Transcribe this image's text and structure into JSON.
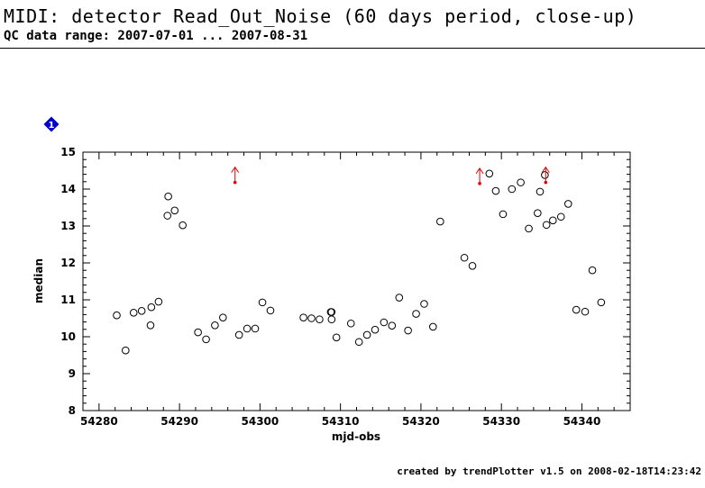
{
  "header": {
    "title": "MIDI: detector Read_Out_Noise (60 days period, close-up)",
    "subtitle": "QC data range: 2007-07-01 ... 2007-08-31"
  },
  "footer": {
    "credit": "created by trendPlotter v1.5 on 2008-02-18T14:23:42"
  },
  "badge": {
    "label": "1",
    "color": "#0000cc"
  },
  "colors": {
    "marker": "#000000",
    "outlier": "#dd0000"
  },
  "chart_data": {
    "type": "scatter",
    "xlabel": "mjd-obs",
    "ylabel": "median",
    "xlim": [
      54278,
      54346
    ],
    "ylim": [
      8,
      15
    ],
    "xticks": [
      54280,
      54290,
      54300,
      54310,
      54320,
      54330,
      54340
    ],
    "yticks": [
      8,
      9,
      10,
      11,
      12,
      13,
      14,
      15
    ],
    "grid": false,
    "series": [
      {
        "marker": "open-circle",
        "x": [
          54282.2,
          54283.3,
          54284.3,
          54285.3,
          54286.4,
          54286.5,
          54287.4,
          54288.5,
          54288.6,
          54289.4,
          54290.4,
          54292.3,
          54293.3,
          54294.4,
          54295.4,
          54297.4,
          54298.4,
          54299.4,
          54300.3,
          54301.3,
          54305.4,
          54306.4,
          54307.4,
          54308.8,
          54308.9,
          54308.9,
          54309.5,
          54311.3,
          54312.3,
          54313.3,
          54314.3,
          54315.4,
          54316.4,
          54317.3,
          54318.4,
          54319.4,
          54320.4,
          54321.5,
          54322.4,
          54325.4,
          54326.4,
          54328.5,
          54329.3,
          54330.2,
          54331.3,
          54332.4,
          54333.4,
          54334.5,
          54334.8,
          54335.4,
          54335.6,
          54336.4,
          54337.4,
          54338.3,
          54339.3,
          54340.4,
          54341.3,
          54342.4
        ],
        "y": [
          10.58,
          9.63,
          10.65,
          10.7,
          10.31,
          10.8,
          10.95,
          13.28,
          13.8,
          13.42,
          13.02,
          10.12,
          9.93,
          10.31,
          10.52,
          10.05,
          10.22,
          10.22,
          10.93,
          10.71,
          10.52,
          10.5,
          10.47,
          10.67,
          10.47,
          10.67,
          9.98,
          10.36,
          9.86,
          10.05,
          10.19,
          10.39,
          10.3,
          11.06,
          10.17,
          10.62,
          10.89,
          10.27,
          13.12,
          12.14,
          11.92,
          14.42,
          13.95,
          13.32,
          14.0,
          14.18,
          12.93,
          13.35,
          13.93,
          14.38,
          13.03,
          13.15,
          13.25,
          13.6,
          10.73,
          10.68,
          11.8,
          10.93
        ]
      },
      {
        "marker": "upper-limit-arrow",
        "x": [
          54296.9,
          54327.3,
          54335.5
        ],
        "y": [
          14.18,
          14.15,
          14.18
        ]
      }
    ]
  }
}
